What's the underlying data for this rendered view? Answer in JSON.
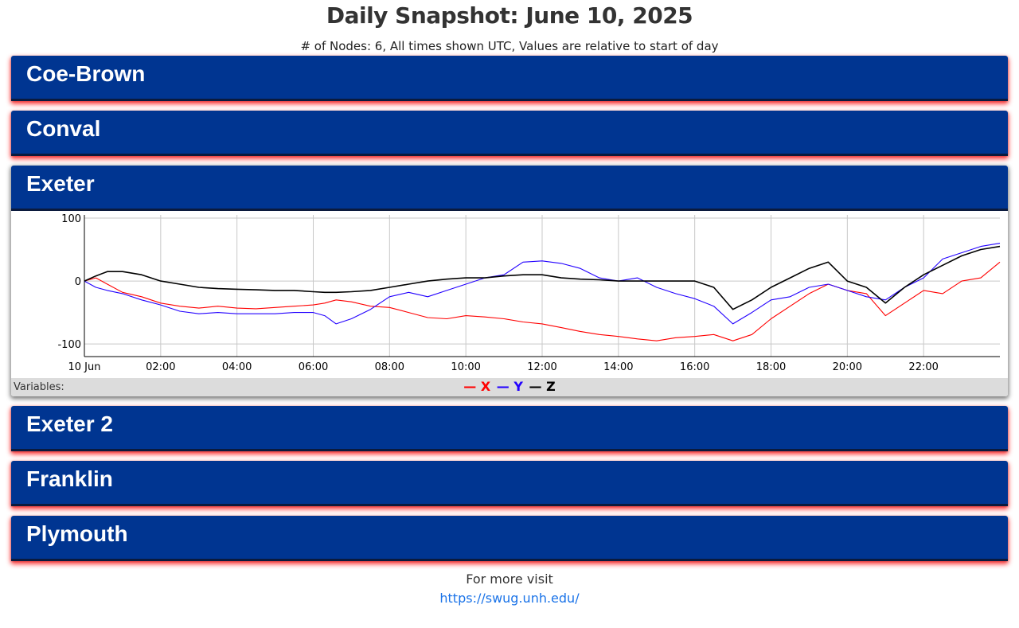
{
  "page": {
    "title": "Daily Snapshot: June 10, 2025",
    "subtitle": "# of Nodes: 6, All times shown UTC, Values are relative to start of day"
  },
  "nodes": [
    {
      "name": "Coe-Brown",
      "expanded": false
    },
    {
      "name": "Conval",
      "expanded": false
    },
    {
      "name": "Exeter",
      "expanded": true
    },
    {
      "name": "Exeter 2",
      "expanded": false
    },
    {
      "name": "Franklin",
      "expanded": false
    },
    {
      "name": "Plymouth",
      "expanded": false
    }
  ],
  "legend": {
    "title": "Variables:",
    "items": [
      {
        "label": "X",
        "dash": "—",
        "color": "#ff0000"
      },
      {
        "label": "Y",
        "dash": "—",
        "color": "#2200ff"
      },
      {
        "label": "Z",
        "dash": "—",
        "color": "#000000"
      }
    ]
  },
  "footer": {
    "text": "For more visit",
    "link": "https://swug.unh.edu/"
  },
  "chart_data": {
    "type": "line",
    "title": "",
    "xlabel": "",
    "ylabel": "",
    "xlim": [
      0,
      24
    ],
    "ylim": [
      -120,
      105
    ],
    "x_ticks": [
      0,
      2,
      4,
      6,
      8,
      10,
      12,
      14,
      16,
      18,
      20,
      22
    ],
    "x_tick_labels": [
      "10 Jun",
      "02:00",
      "04:00",
      "06:00",
      "08:00",
      "10:00",
      "12:00",
      "14:00",
      "16:00",
      "18:00",
      "20:00",
      "22:00"
    ],
    "y_ticks": [
      -100,
      0,
      100
    ],
    "y_tick_labels": [
      "-100",
      "0",
      "100"
    ],
    "grid": true,
    "x": [
      0,
      0.3,
      0.6,
      1,
      1.5,
      2,
      2.5,
      3,
      3.5,
      4,
      4.5,
      5,
      5.5,
      6,
      6.3,
      6.6,
      7,
      7.5,
      8,
      8.5,
      9,
      9.5,
      10,
      10.5,
      11,
      11.5,
      12,
      12.5,
      13,
      13.5,
      14,
      14.5,
      15,
      15.5,
      16,
      16.5,
      17,
      17.5,
      18,
      18.5,
      19,
      19.5,
      20,
      20.5,
      21,
      21.5,
      22,
      22.5,
      23,
      23.5,
      24
    ],
    "series": [
      {
        "name": "X",
        "color": "#ff0000",
        "values": [
          0,
          5,
          -5,
          -18,
          -25,
          -35,
          -40,
          -43,
          -40,
          -43,
          -44,
          -42,
          -40,
          -38,
          -35,
          -30,
          -33,
          -40,
          -42,
          -50,
          -58,
          -60,
          -55,
          -57,
          -60,
          -65,
          -68,
          -74,
          -80,
          -85,
          -88,
          -92,
          -95,
          -90,
          -88,
          -85,
          -95,
          -85,
          -60,
          -40,
          -20,
          -5,
          -15,
          -20,
          -55,
          -35,
          -15,
          -20,
          0,
          5,
          30
        ]
      },
      {
        "name": "Y",
        "color": "#2200ff",
        "values": [
          0,
          -10,
          -15,
          -20,
          -30,
          -38,
          -48,
          -52,
          -50,
          -52,
          -52,
          -52,
          -50,
          -50,
          -55,
          -68,
          -60,
          -45,
          -25,
          -18,
          -25,
          -15,
          -5,
          5,
          10,
          30,
          32,
          28,
          20,
          5,
          0,
          5,
          -10,
          -20,
          -28,
          -40,
          -68,
          -50,
          -30,
          -25,
          -10,
          -5,
          -15,
          -25,
          -30,
          -10,
          5,
          35,
          45,
          55,
          60
        ]
      },
      {
        "name": "Z",
        "color": "#000000",
        "values": [
          0,
          8,
          15,
          15,
          10,
          0,
          -5,
          -10,
          -12,
          -13,
          -14,
          -15,
          -15,
          -17,
          -18,
          -18,
          -17,
          -15,
          -10,
          -5,
          0,
          3,
          5,
          5,
          8,
          10,
          10,
          5,
          3,
          2,
          0,
          0,
          0,
          0,
          0,
          -10,
          -45,
          -30,
          -10,
          5,
          20,
          30,
          0,
          -10,
          -35,
          -10,
          10,
          25,
          40,
          50,
          55
        ]
      }
    ]
  }
}
